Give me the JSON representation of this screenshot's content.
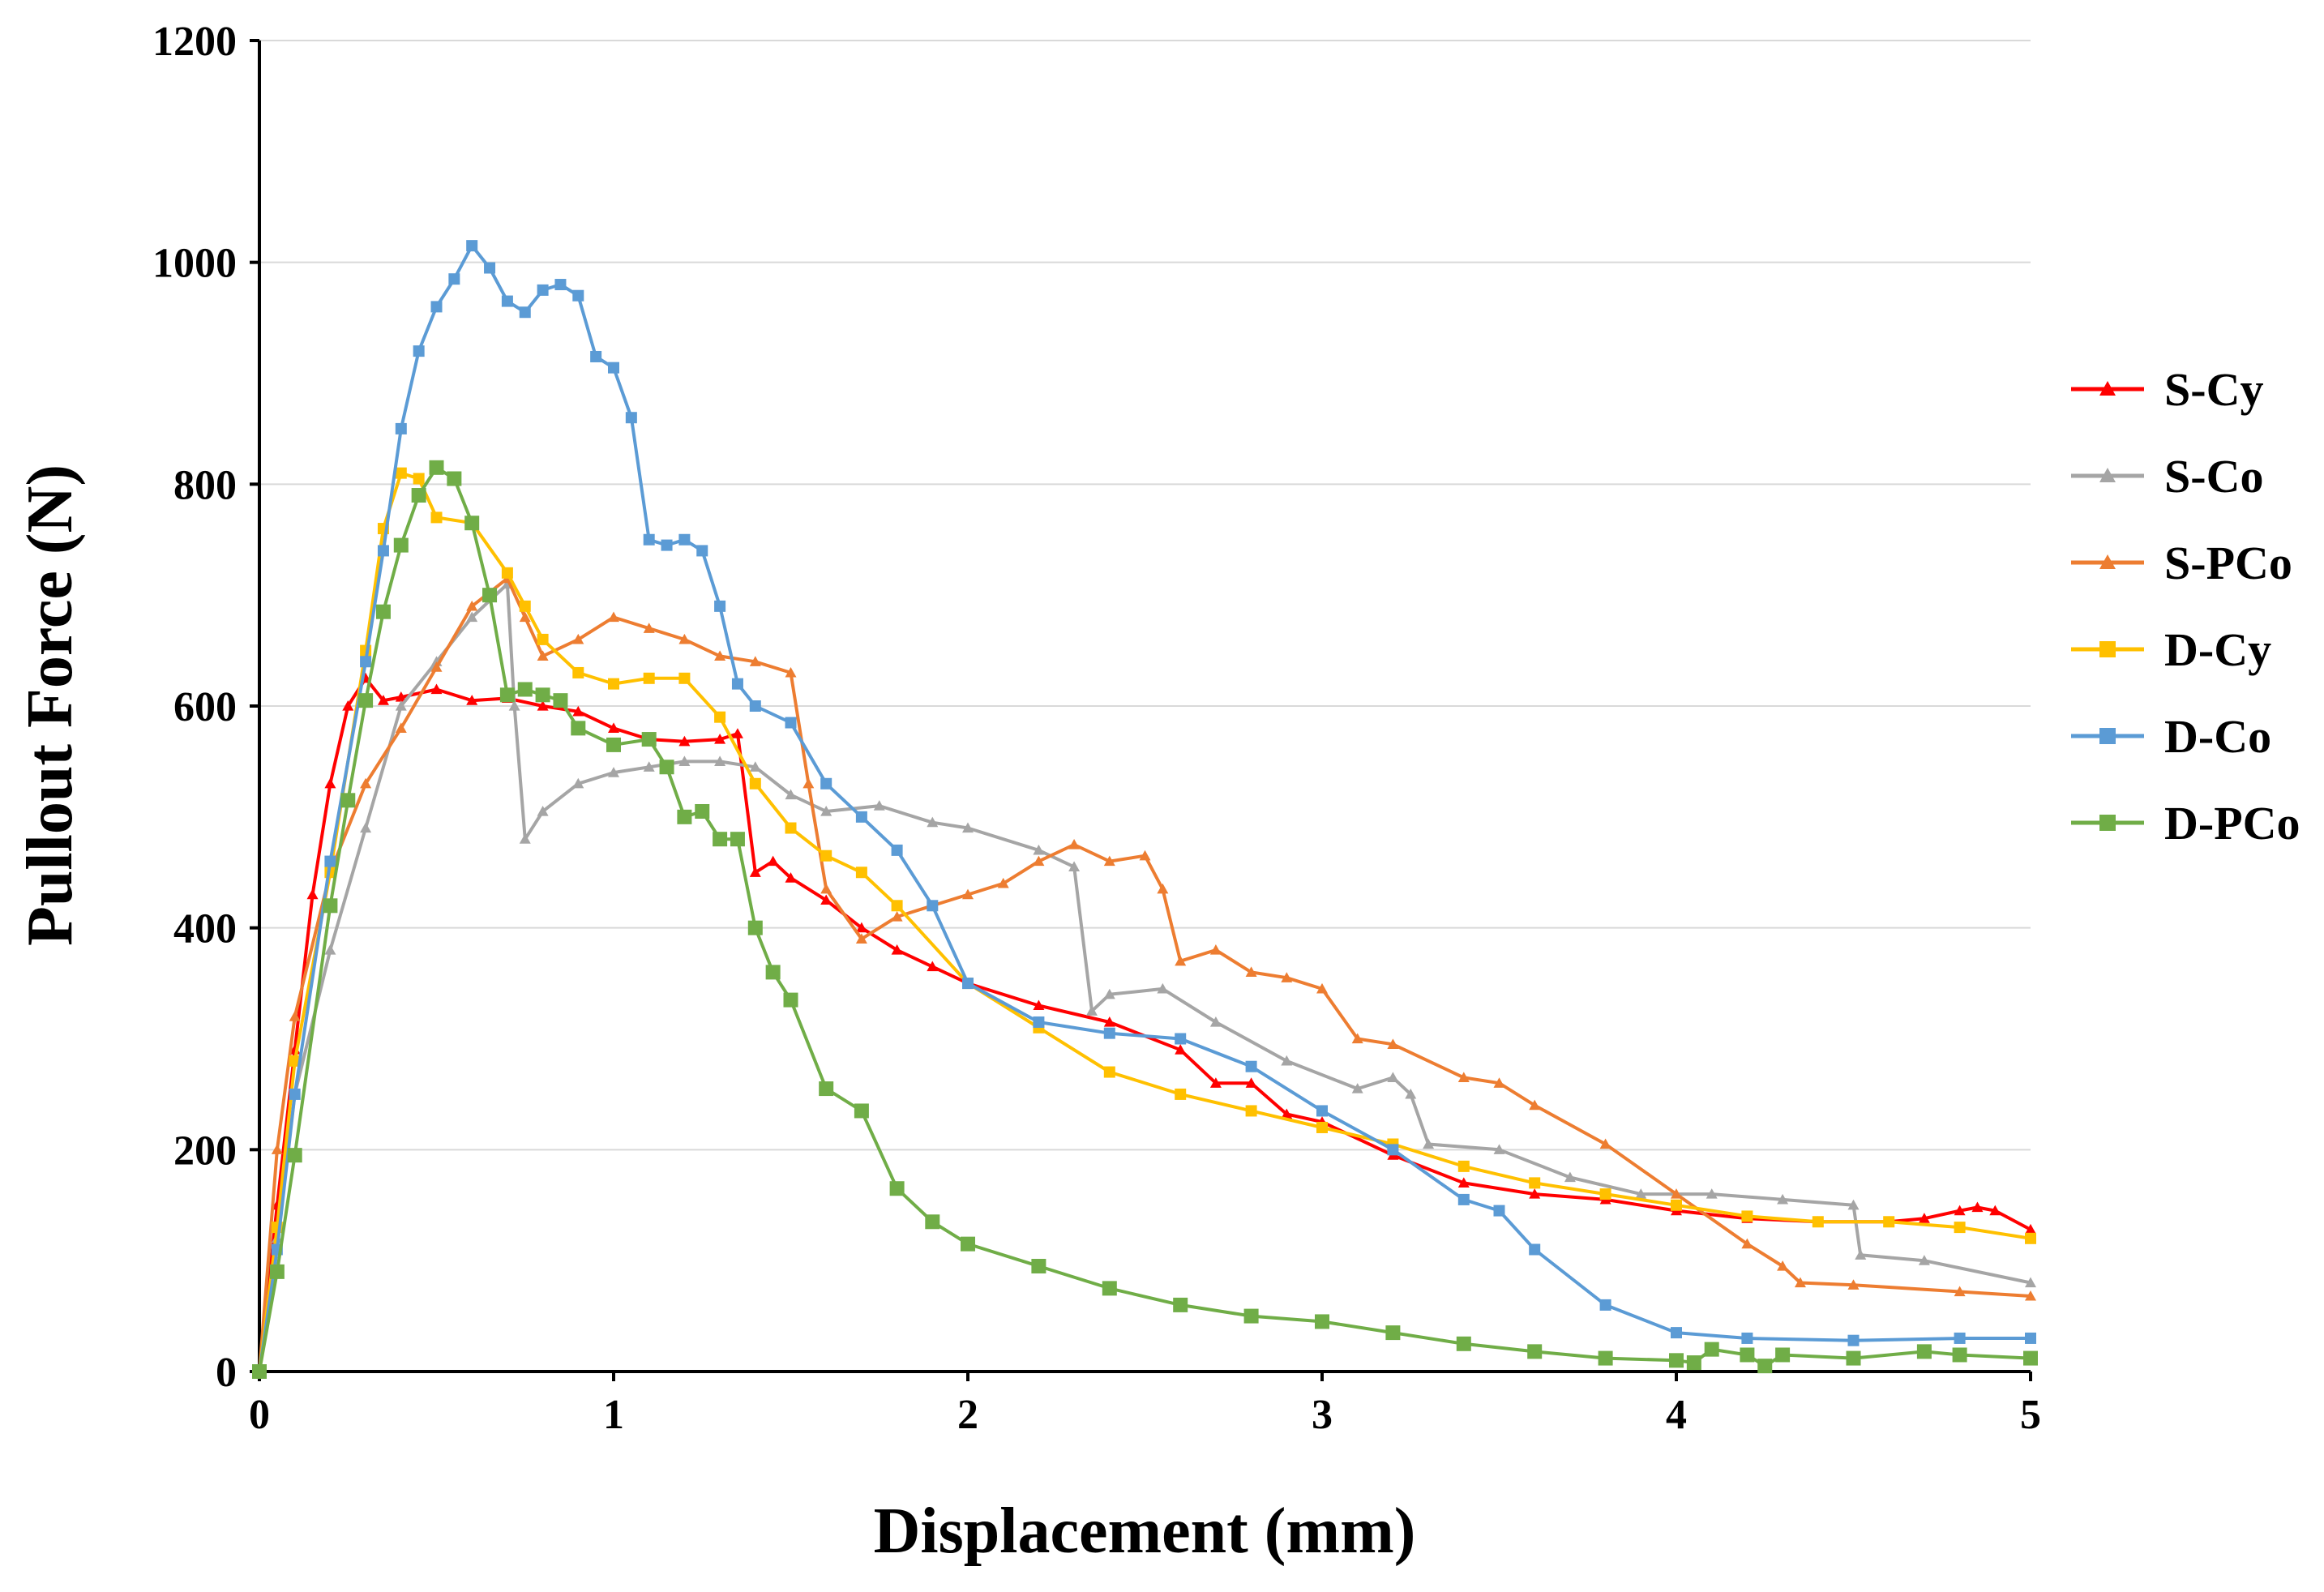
{
  "chart_data": {
    "type": "line",
    "title": "",
    "xlabel": "Displacement (mm)",
    "ylabel": "Pullout Force (N)",
    "xlim": [
      0,
      5
    ],
    "ylim": [
      0,
      1200
    ],
    "xticks": [
      0,
      1,
      2,
      3,
      4,
      5
    ],
    "yticks": [
      0,
      200,
      400,
      600,
      800,
      1000,
      1200
    ],
    "grid": "horizontal",
    "legend_position": "right",
    "series": [
      {
        "name": "S-Cy",
        "color": "#ff0000",
        "marker": "triangle",
        "x": [
          0,
          0.05,
          0.1,
          0.15,
          0.2,
          0.25,
          0.3,
          0.35,
          0.4,
          0.5,
          0.6,
          0.7,
          0.8,
          0.9,
          1.0,
          1.1,
          1.2,
          1.3,
          1.35,
          1.4,
          1.45,
          1.5,
          1.6,
          1.7,
          1.8,
          1.9,
          2.0,
          2.2,
          2.4,
          2.6,
          2.7,
          2.8,
          2.9,
          3.0,
          3.2,
          3.4,
          3.6,
          3.8,
          4.0,
          4.2,
          4.4,
          4.6,
          4.7,
          4.8,
          4.85,
          4.9,
          5.0
        ],
        "y": [
          0,
          150,
          290,
          430,
          530,
          600,
          625,
          605,
          608,
          615,
          605,
          607,
          600,
          595,
          580,
          570,
          568,
          570,
          575,
          450,
          460,
          445,
          425,
          400,
          380,
          365,
          350,
          330,
          315,
          290,
          260,
          260,
          232,
          225,
          195,
          170,
          160,
          155,
          145,
          138,
          135,
          135,
          138,
          145,
          148,
          145,
          128
        ]
      },
      {
        "name": "S-Co",
        "color": "#a5a5a5",
        "marker": "triangle",
        "x": [
          0,
          0.05,
          0.1,
          0.2,
          0.3,
          0.4,
          0.5,
          0.6,
          0.7,
          0.72,
          0.75,
          0.8,
          0.9,
          1.0,
          1.1,
          1.2,
          1.3,
          1.4,
          1.5,
          1.6,
          1.75,
          1.9,
          2.0,
          2.2,
          2.3,
          2.35,
          2.4,
          2.55,
          2.7,
          2.9,
          3.1,
          3.2,
          3.25,
          3.3,
          3.5,
          3.7,
          3.9,
          4.1,
          4.3,
          4.5,
          4.52,
          4.7,
          5.0
        ],
        "y": [
          0,
          120,
          250,
          380,
          490,
          600,
          640,
          680,
          710,
          600,
          480,
          505,
          530,
          540,
          545,
          550,
          550,
          545,
          520,
          505,
          510,
          495,
          490,
          470,
          455,
          325,
          340,
          345,
          315,
          280,
          255,
          265,
          250,
          205,
          200,
          175,
          160,
          160,
          155,
          150,
          105,
          100,
          80
        ]
      },
      {
        "name": "S-PCo",
        "color": "#ed7d31",
        "marker": "triangle",
        "x": [
          0,
          0.05,
          0.1,
          0.2,
          0.3,
          0.4,
          0.5,
          0.6,
          0.7,
          0.75,
          0.8,
          0.9,
          1.0,
          1.1,
          1.2,
          1.3,
          1.4,
          1.5,
          1.55,
          1.6,
          1.7,
          1.8,
          2.0,
          2.1,
          2.2,
          2.3,
          2.4,
          2.5,
          2.55,
          2.6,
          2.7,
          2.8,
          2.9,
          3.0,
          3.1,
          3.2,
          3.4,
          3.5,
          3.6,
          3.8,
          4.0,
          4.2,
          4.3,
          4.35,
          4.5,
          4.8,
          5.0
        ],
        "y": [
          0,
          200,
          320,
          450,
          530,
          580,
          635,
          690,
          715,
          680,
          645,
          660,
          680,
          670,
          660,
          645,
          640,
          630,
          530,
          435,
          390,
          410,
          430,
          440,
          460,
          475,
          460,
          465,
          435,
          370,
          380,
          360,
          355,
          345,
          300,
          295,
          265,
          260,
          240,
          205,
          160,
          115,
          95,
          80,
          78,
          72,
          68
        ]
      },
      {
        "name": "D-Cy",
        "color": "#ffc000",
        "marker": "square",
        "x": [
          0,
          0.05,
          0.1,
          0.2,
          0.3,
          0.35,
          0.4,
          0.45,
          0.5,
          0.6,
          0.7,
          0.75,
          0.8,
          0.9,
          1.0,
          1.1,
          1.2,
          1.3,
          1.4,
          1.5,
          1.6,
          1.7,
          1.8,
          2.0,
          2.2,
          2.4,
          2.6,
          2.8,
          3.0,
          3.2,
          3.4,
          3.6,
          3.8,
          4.0,
          4.2,
          4.4,
          4.6,
          4.8,
          5.0
        ],
        "y": [
          0,
          130,
          280,
          450,
          650,
          760,
          810,
          805,
          770,
          765,
          720,
          690,
          660,
          630,
          620,
          625,
          625,
          590,
          530,
          490,
          465,
          450,
          420,
          350,
          310,
          270,
          250,
          235,
          220,
          205,
          185,
          170,
          160,
          150,
          140,
          135,
          135,
          130,
          120
        ]
      },
      {
        "name": "D-Co",
        "color": "#5b9bd5",
        "marker": "square",
        "x": [
          0,
          0.05,
          0.1,
          0.2,
          0.3,
          0.35,
          0.4,
          0.45,
          0.5,
          0.55,
          0.6,
          0.65,
          0.7,
          0.75,
          0.8,
          0.85,
          0.9,
          0.95,
          1.0,
          1.05,
          1.1,
          1.15,
          1.2,
          1.25,
          1.3,
          1.35,
          1.4,
          1.5,
          1.6,
          1.7,
          1.8,
          1.9,
          2.0,
          2.2,
          2.4,
          2.6,
          2.8,
          3.0,
          3.2,
          3.4,
          3.5,
          3.6,
          3.8,
          4.0,
          4.2,
          4.5,
          4.8,
          5.0
        ],
        "y": [
          0,
          110,
          250,
          460,
          640,
          740,
          850,
          920,
          960,
          985,
          1015,
          995,
          965,
          955,
          975,
          980,
          970,
          915,
          905,
          860,
          750,
          745,
          750,
          740,
          690,
          620,
          600,
          585,
          530,
          500,
          470,
          420,
          350,
          315,
          305,
          300,
          275,
          235,
          200,
          155,
          145,
          110,
          60,
          35,
          30,
          28,
          30,
          30
        ]
      },
      {
        "name": "D-PCo",
        "color": "#70ad47",
        "marker": "square",
        "x": [
          0,
          0.05,
          0.1,
          0.2,
          0.25,
          0.3,
          0.35,
          0.4,
          0.45,
          0.5,
          0.55,
          0.6,
          0.65,
          0.7,
          0.75,
          0.8,
          0.85,
          0.9,
          1.0,
          1.1,
          1.15,
          1.2,
          1.25,
          1.3,
          1.35,
          1.4,
          1.45,
          1.5,
          1.6,
          1.7,
          1.8,
          1.9,
          2.0,
          2.2,
          2.4,
          2.6,
          2.8,
          3.0,
          3.2,
          3.4,
          3.6,
          3.8,
          4.0,
          4.05,
          4.1,
          4.2,
          4.25,
          4.3,
          4.5,
          4.7,
          4.8,
          5.0
        ],
        "y": [
          0,
          90,
          195,
          420,
          515,
          605,
          685,
          745,
          790,
          815,
          805,
          765,
          700,
          610,
          615,
          610,
          605,
          580,
          565,
          570,
          545,
          500,
          505,
          480,
          480,
          400,
          360,
          335,
          255,
          235,
          165,
          135,
          115,
          95,
          75,
          60,
          50,
          45,
          35,
          25,
          18,
          12,
          10,
          8,
          20,
          15,
          5,
          15,
          12,
          18,
          15,
          12
        ]
      }
    ]
  }
}
